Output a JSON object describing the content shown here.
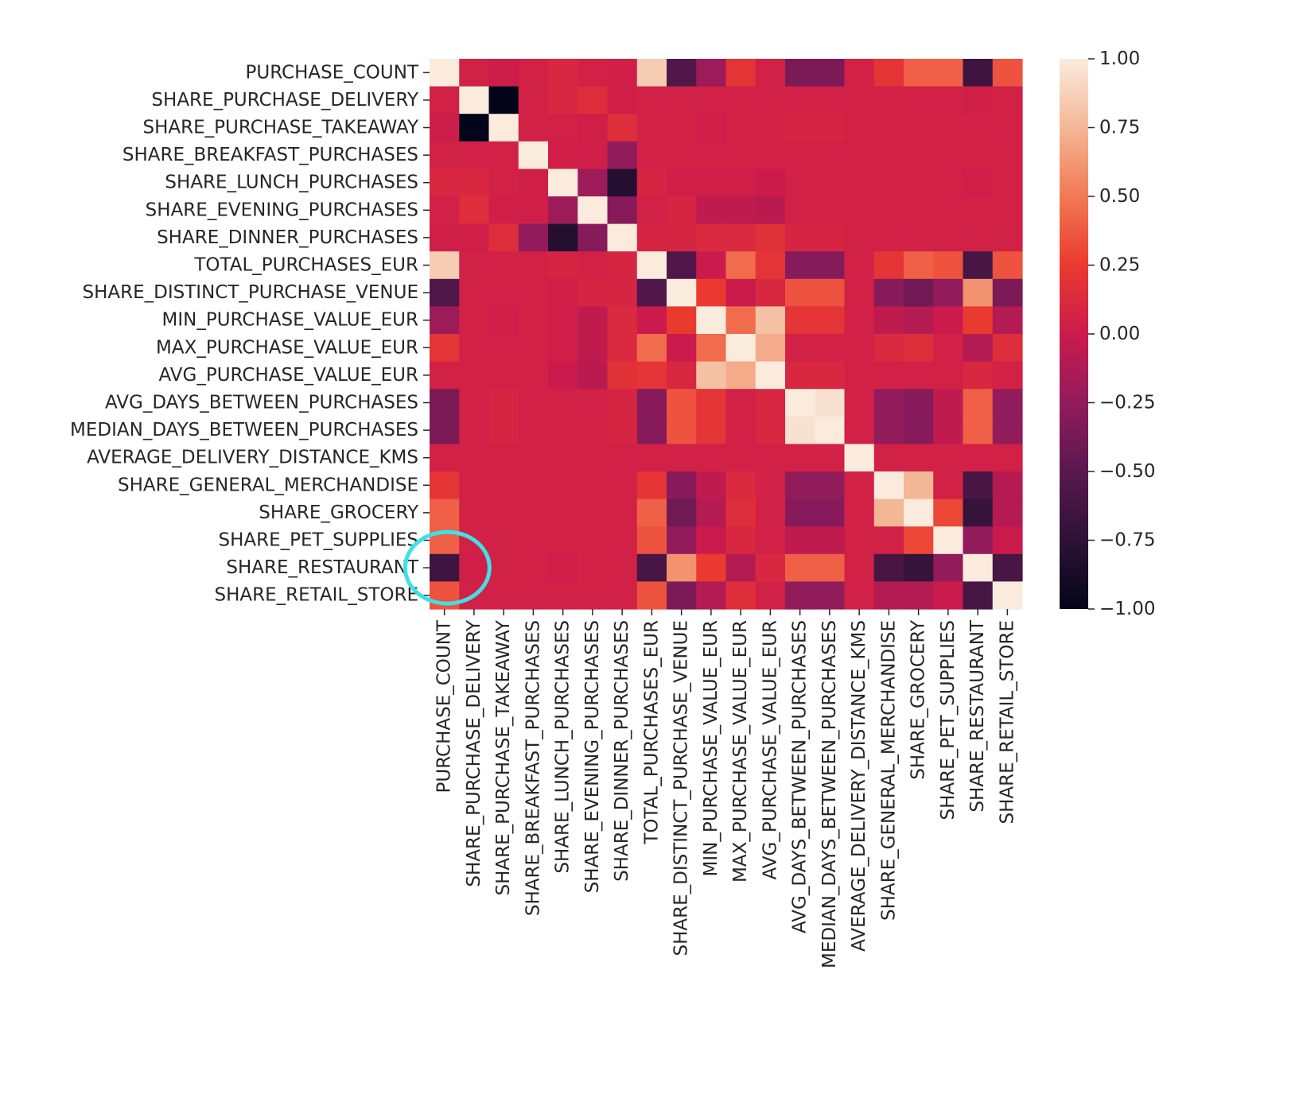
{
  "chart_data": {
    "type": "heatmap",
    "title": "",
    "xlabel": "",
    "ylabel": "",
    "labels": [
      "PURCHASE_COUNT",
      "SHARE_PURCHASE_DELIVERY",
      "SHARE_PURCHASE_TAKEAWAY",
      "SHARE_BREAKFAST_PURCHASES",
      "SHARE_LUNCH_PURCHASES",
      "SHARE_EVENING_PURCHASES",
      "SHARE_DINNER_PURCHASES",
      "TOTAL_PURCHASES_EUR",
      "SHARE_DISTINCT_PURCHASE_VENUE",
      "MIN_PURCHASE_VALUE_EUR",
      "MAX_PURCHASE_VALUE_EUR",
      "AVG_PURCHASE_VALUE_EUR",
      "AVG_DAYS_BETWEEN_PURCHASES",
      "MEDIAN_DAYS_BETWEEN_PURCHASES",
      "AVERAGE_DELIVERY_DISTANCE_KMS",
      "SHARE_GENERAL_MERCHANDISE",
      "SHARE_GROCERY",
      "SHARE_PET_SUPPLIES",
      "SHARE_RESTAURANT",
      "SHARE_RETAIL_STORE"
    ],
    "matrix": [
      [
        1.0,
        0.05,
        0.02,
        0.05,
        0.1,
        0.05,
        0.03,
        0.85,
        -0.55,
        -0.2,
        0.2,
        0.05,
        -0.35,
        -0.35,
        0.05,
        0.2,
        0.4,
        0.4,
        -0.65,
        0.35
      ],
      [
        0.05,
        1.0,
        -1.0,
        0.05,
        0.1,
        0.15,
        0.03,
        0.05,
        0.05,
        0.05,
        0.05,
        0.05,
        0.05,
        0.05,
        0.05,
        0.05,
        0.05,
        0.05,
        0.03,
        0.05
      ],
      [
        0.02,
        -1.0,
        1.0,
        0.05,
        0.05,
        0.03,
        0.15,
        0.05,
        0.05,
        0.03,
        0.05,
        0.05,
        0.08,
        0.08,
        0.05,
        0.05,
        0.05,
        0.05,
        0.05,
        0.05
      ],
      [
        0.05,
        0.05,
        0.05,
        1.0,
        0.03,
        0.03,
        -0.25,
        0.05,
        0.05,
        0.05,
        0.05,
        0.05,
        0.05,
        0.05,
        0.05,
        0.05,
        0.05,
        0.05,
        0.05,
        0.05
      ],
      [
        0.1,
        0.1,
        0.05,
        0.03,
        1.0,
        -0.2,
        -0.8,
        0.08,
        0.03,
        0.03,
        0.03,
        0.0,
        0.05,
        0.05,
        0.05,
        0.05,
        0.05,
        0.05,
        0.03,
        0.05
      ],
      [
        0.05,
        0.15,
        0.03,
        0.03,
        -0.2,
        1.0,
        -0.3,
        0.05,
        0.08,
        -0.05,
        -0.05,
        -0.08,
        0.05,
        0.05,
        0.05,
        0.05,
        0.05,
        0.05,
        0.05,
        0.05
      ],
      [
        0.03,
        0.03,
        0.15,
        -0.25,
        -0.8,
        -0.3,
        1.0,
        0.08,
        0.08,
        0.12,
        0.12,
        0.18,
        0.08,
        0.08,
        0.05,
        0.05,
        0.05,
        0.05,
        0.05,
        0.05
      ],
      [
        0.85,
        0.05,
        0.05,
        0.05,
        0.08,
        0.05,
        0.08,
        1.0,
        -0.55,
        0.0,
        0.45,
        0.2,
        -0.3,
        -0.3,
        0.05,
        0.2,
        0.4,
        0.35,
        -0.6,
        0.35
      ],
      [
        -0.55,
        0.05,
        0.05,
        0.05,
        0.03,
        0.08,
        0.08,
        -0.55,
        1.0,
        0.25,
        0.0,
        0.1,
        0.35,
        0.35,
        0.05,
        -0.3,
        -0.4,
        -0.25,
        0.6,
        -0.35
      ],
      [
        -0.2,
        0.05,
        0.03,
        0.05,
        0.03,
        -0.05,
        0.12,
        0.0,
        0.25,
        1.0,
        0.45,
        0.8,
        0.2,
        0.2,
        0.05,
        -0.05,
        -0.1,
        0.0,
        0.25,
        -0.1
      ],
      [
        0.2,
        0.05,
        0.05,
        0.05,
        0.03,
        -0.05,
        0.12,
        0.45,
        0.0,
        0.45,
        1.0,
        0.7,
        0.05,
        0.05,
        0.05,
        0.12,
        0.15,
        0.05,
        -0.1,
        0.15
      ],
      [
        0.05,
        0.05,
        0.05,
        0.05,
        0.0,
        -0.08,
        0.18,
        0.2,
        0.1,
        0.8,
        0.7,
        1.0,
        0.1,
        0.1,
        0.05,
        0.05,
        0.05,
        0.05,
        0.1,
        0.05
      ],
      [
        -0.35,
        0.05,
        0.08,
        0.05,
        0.05,
        0.05,
        0.08,
        -0.3,
        0.35,
        0.2,
        0.05,
        0.1,
        1.0,
        0.95,
        0.05,
        -0.25,
        -0.3,
        -0.05,
        0.4,
        -0.25
      ],
      [
        -0.35,
        0.05,
        0.08,
        0.05,
        0.05,
        0.05,
        0.08,
        -0.3,
        0.35,
        0.2,
        0.05,
        0.1,
        0.95,
        1.0,
        0.05,
        -0.25,
        -0.3,
        -0.05,
        0.4,
        -0.25
      ],
      [
        0.05,
        0.05,
        0.05,
        0.05,
        0.05,
        0.05,
        0.05,
        0.05,
        0.05,
        0.05,
        0.05,
        0.05,
        0.05,
        0.05,
        1.0,
        0.05,
        0.05,
        0.05,
        0.05,
        0.05
      ],
      [
        0.2,
        0.05,
        0.05,
        0.05,
        0.05,
        0.05,
        0.05,
        0.2,
        -0.3,
        -0.05,
        0.12,
        0.05,
        -0.25,
        -0.25,
        0.05,
        1.0,
        0.75,
        0.05,
        -0.6,
        -0.1
      ],
      [
        0.4,
        0.05,
        0.05,
        0.05,
        0.05,
        0.05,
        0.05,
        0.4,
        -0.4,
        -0.1,
        0.15,
        0.05,
        -0.3,
        -0.3,
        0.05,
        0.75,
        1.0,
        0.3,
        -0.7,
        -0.1
      ],
      [
        0.4,
        0.05,
        0.05,
        0.05,
        0.05,
        0.05,
        0.05,
        0.35,
        -0.25,
        0.0,
        0.1,
        0.05,
        -0.05,
        -0.05,
        0.05,
        0.05,
        0.3,
        1.0,
        -0.25,
        0.0
      ],
      [
        -0.65,
        0.03,
        0.05,
        0.05,
        0.03,
        0.05,
        0.05,
        -0.6,
        0.6,
        0.25,
        -0.1,
        0.1,
        0.4,
        0.4,
        0.05,
        -0.6,
        -0.7,
        -0.25,
        1.0,
        -0.6
      ],
      [
        0.35,
        0.05,
        0.05,
        0.05,
        0.05,
        0.05,
        0.05,
        0.35,
        -0.35,
        -0.1,
        0.15,
        0.05,
        -0.25,
        -0.25,
        0.05,
        -0.1,
        -0.1,
        0.0,
        -0.6,
        1.0
      ]
    ],
    "colorbar": {
      "range": [
        -1.0,
        1.0
      ],
      "ticks": [
        "1.00",
        "0.75",
        "0.50",
        "0.25",
        "0.00",
        "−0.25",
        "−0.50",
        "−0.75",
        "−1.00"
      ],
      "colormap": "rocket"
    },
    "annotation": {
      "shape": "ellipse",
      "color": "#40e0e8",
      "highlights": "SHARE_RESTAURANT vs PURCHASE_COUNT"
    }
  }
}
